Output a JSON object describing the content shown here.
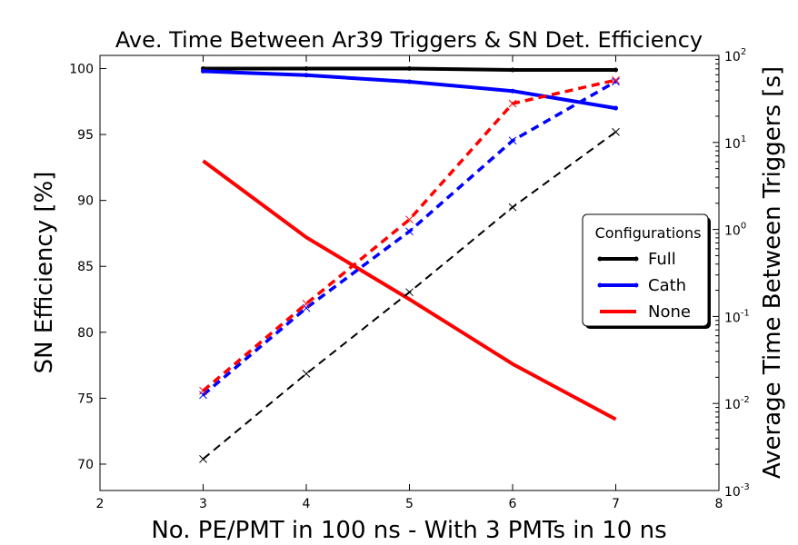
{
  "chart_data": {
    "type": "line",
    "title": "Ave. Time Between Ar39 Triggers & SN Det. Efficiency",
    "xlabel": "No. PE/PMT in 100 ns - With 3 PMTs in 10 ns",
    "ylabel": "SN Efficiency [%]",
    "y2label": "Average Time Between Triggers [s]",
    "xlim": [
      2,
      8
    ],
    "ylim": [
      68,
      101
    ],
    "y2lim": [
      0.001,
      100
    ],
    "y2scale": "log",
    "x_ticks": [
      "2",
      "3",
      "4",
      "5",
      "6",
      "7",
      "8"
    ],
    "y_ticks": [
      "70",
      "75",
      "80",
      "85",
      "90",
      "95",
      "100"
    ],
    "y2_ticks": [
      {
        "base": "10",
        "exp": "-3"
      },
      {
        "base": "10",
        "exp": "-2"
      },
      {
        "base": "10",
        "exp": "-1"
      },
      {
        "base": "10",
        "exp": "0"
      },
      {
        "base": "10",
        "exp": "1"
      },
      {
        "base": "10",
        "exp": "2"
      }
    ],
    "grid": false,
    "legend": {
      "title": "Configurations",
      "placement": "center-right",
      "entries": [
        "Full",
        "Cath",
        "None"
      ]
    },
    "x": [
      3,
      4,
      5,
      6,
      7
    ],
    "series": [
      {
        "name": "Full",
        "color": "#000000",
        "axis": "left",
        "style": "solid",
        "marker": "point",
        "values": [
          100.0,
          100.0,
          100.0,
          99.9,
          99.9
        ]
      },
      {
        "name": "Cath",
        "color": "#0000ff",
        "axis": "left",
        "style": "solid",
        "marker": "point",
        "values": [
          99.8,
          99.5,
          99.0,
          98.3,
          97.0
        ]
      },
      {
        "name": "None",
        "color": "#ff0000",
        "axis": "left",
        "style": "solid",
        "marker": "none",
        "values": [
          93.0,
          87.2,
          82.5,
          77.6,
          73.4
        ]
      },
      {
        "name": "Full",
        "color": "#000000",
        "axis": "right",
        "style": "dashed",
        "marker": "x",
        "values": [
          0.0023,
          0.022,
          0.19,
          1.8,
          13.2
        ]
      },
      {
        "name": "Cath",
        "color": "#0000ff",
        "axis": "right",
        "style": "dashed",
        "marker": "x",
        "values": [
          0.0125,
          0.125,
          0.95,
          10.5,
          50
        ]
      },
      {
        "name": "None",
        "color": "#ff0000",
        "axis": "right",
        "style": "dashed",
        "marker": "x",
        "values": [
          0.014,
          0.14,
          1.3,
          28,
          52
        ]
      }
    ]
  }
}
